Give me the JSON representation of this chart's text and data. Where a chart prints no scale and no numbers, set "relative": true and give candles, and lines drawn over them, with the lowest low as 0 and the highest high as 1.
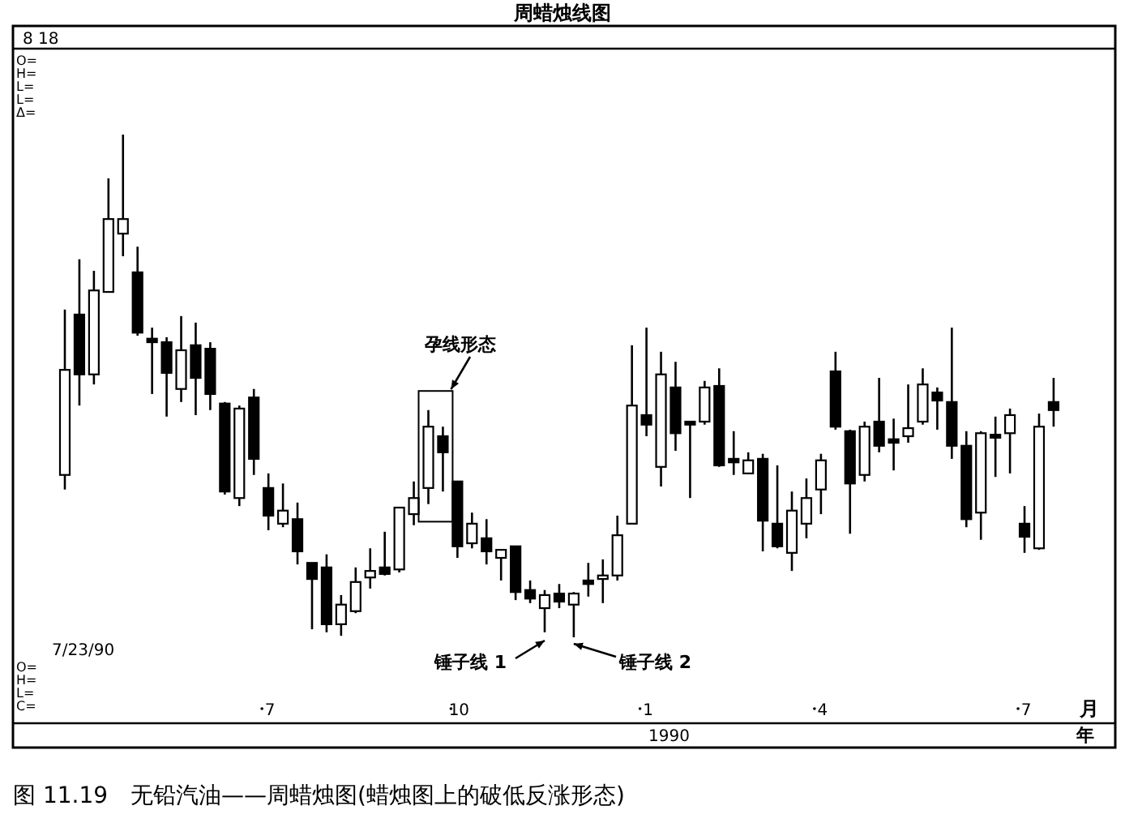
{
  "chart_data": {
    "type": "candlestick",
    "relative": true,
    "title": "周蜡烛线图",
    "xlabel": "月",
    "categories": [
      null,
      null,
      null,
      null,
      null,
      null,
      null,
      null,
      null,
      null,
      null,
      null,
      null,
      null,
      "7",
      null,
      null,
      null,
      null,
      null,
      null,
      null,
      null,
      null,
      null,
      null,
      null,
      "10",
      null,
      null,
      null,
      null,
      null,
      null,
      null,
      null,
      null,
      null,
      null,
      null,
      "1",
      null,
      null,
      null,
      null,
      null,
      null,
      null,
      null,
      null,
      null,
      null,
      "4",
      null,
      null,
      null,
      null,
      null,
      null,
      null,
      null,
      null,
      null,
      null,
      null,
      null,
      "7",
      null,
      null
    ],
    "ohlc": [
      [
        0.323,
        0.652,
        0.294,
        0.532
      ],
      [
        0.642,
        0.752,
        0.461,
        0.523
      ],
      [
        0.523,
        0.729,
        0.503,
        0.69
      ],
      [
        0.687,
        0.913,
        0.687,
        0.832
      ],
      [
        0.803,
        1.0,
        0.758,
        0.832
      ],
      [
        0.726,
        0.777,
        0.6,
        0.606
      ],
      [
        0.594,
        0.616,
        0.484,
        0.587
      ],
      [
        0.587,
        0.597,
        0.439,
        0.526
      ],
      [
        0.494,
        0.639,
        0.468,
        0.571
      ],
      [
        0.581,
        0.626,
        0.442,
        0.516
      ],
      [
        0.574,
        0.587,
        0.452,
        0.484
      ],
      [
        0.465,
        0.468,
        0.284,
        0.29
      ],
      [
        0.277,
        0.461,
        0.261,
        0.455
      ],
      [
        0.477,
        0.494,
        0.323,
        0.355
      ],
      [
        0.297,
        0.326,
        0.213,
        0.242
      ],
      [
        0.226,
        0.306,
        0.219,
        0.252
      ],
      [
        0.235,
        0.268,
        0.145,
        0.171
      ],
      [
        0.148,
        0.148,
        0.016,
        0.116
      ],
      [
        0.139,
        0.165,
        0.01,
        0.026
      ],
      [
        0.026,
        0.084,
        0.003,
        0.065
      ],
      [
        0.052,
        0.139,
        0.048,
        0.11
      ],
      [
        0.119,
        0.177,
        0.097,
        0.132
      ],
      [
        0.139,
        0.21,
        0.123,
        0.126
      ],
      [
        0.135,
        0.258,
        0.129,
        0.258
      ],
      [
        0.245,
        0.31,
        0.223,
        0.277
      ],
      [
        0.297,
        0.452,
        0.265,
        0.419
      ],
      [
        0.4,
        0.419,
        0.29,
        0.368
      ],
      [
        0.31,
        0.31,
        0.158,
        0.181
      ],
      [
        0.187,
        0.248,
        0.177,
        0.226
      ],
      [
        0.197,
        0.235,
        0.145,
        0.171
      ],
      [
        0.158,
        0.174,
        0.113,
        0.174
      ],
      [
        0.181,
        0.181,
        0.074,
        0.09
      ],
      [
        0.094,
        0.113,
        0.068,
        0.077
      ],
      [
        0.058,
        0.094,
        0.01,
        0.084
      ],
      [
        0.087,
        0.106,
        0.058,
        0.071
      ],
      [
        0.065,
        0.09,
        0.0,
        0.087
      ],
      [
        0.113,
        0.148,
        0.081,
        0.106
      ],
      [
        0.116,
        0.155,
        0.068,
        0.123
      ],
      [
        0.123,
        0.242,
        0.113,
        0.203
      ],
      [
        0.226,
        0.581,
        0.226,
        0.461
      ],
      [
        0.442,
        0.616,
        0.4,
        0.423
      ],
      [
        0.339,
        0.568,
        0.3,
        0.523
      ],
      [
        0.497,
        0.548,
        0.371,
        0.406
      ],
      [
        0.429,
        0.429,
        0.277,
        0.423
      ],
      [
        0.429,
        0.51,
        0.423,
        0.497
      ],
      [
        0.5,
        0.535,
        0.339,
        0.342
      ],
      [
        0.355,
        0.41,
        0.323,
        0.348
      ],
      [
        0.326,
        0.368,
        0.326,
        0.352
      ],
      [
        0.355,
        0.365,
        0.171,
        0.232
      ],
      [
        0.226,
        0.342,
        0.177,
        0.181
      ],
      [
        0.168,
        0.29,
        0.132,
        0.252
      ],
      [
        0.226,
        0.316,
        0.197,
        0.277
      ],
      [
        0.294,
        0.365,
        0.245,
        0.352
      ],
      [
        0.529,
        0.568,
        0.413,
        0.419
      ],
      [
        0.41,
        0.413,
        0.206,
        0.306
      ],
      [
        0.323,
        0.429,
        0.31,
        0.419
      ],
      [
        0.429,
        0.516,
        0.368,
        0.381
      ],
      [
        0.394,
        0.435,
        0.332,
        0.387
      ],
      [
        0.4,
        0.503,
        0.387,
        0.416
      ],
      [
        0.429,
        0.535,
        0.423,
        0.503
      ],
      [
        0.487,
        0.497,
        0.413,
        0.471
      ],
      [
        0.468,
        0.616,
        0.355,
        0.381
      ],
      [
        0.381,
        0.41,
        0.219,
        0.235
      ],
      [
        0.248,
        0.41,
        0.194,
        0.406
      ],
      [
        0.403,
        0.439,
        0.319,
        0.397
      ],
      [
        0.406,
        0.455,
        0.326,
        0.442
      ],
      [
        0.226,
        0.261,
        0.168,
        0.2
      ],
      [
        0.177,
        0.445,
        0.174,
        0.419
      ],
      [
        0.468,
        0.516,
        0.419,
        0.452
      ]
    ],
    "annotations": [
      "8 18",
      "O=",
      "H=",
      "L=",
      "L=",
      "Δ=",
      "7/23/90",
      "O=",
      "H=",
      "L=",
      "C=",
      "1990",
      "年",
      "孕线形态",
      "锤子线 1",
      "锤子线 2",
      "图 11.19　无铅汽油——周蜡烛图(蜡烛图上的破低反涨形态)"
    ]
  }
}
